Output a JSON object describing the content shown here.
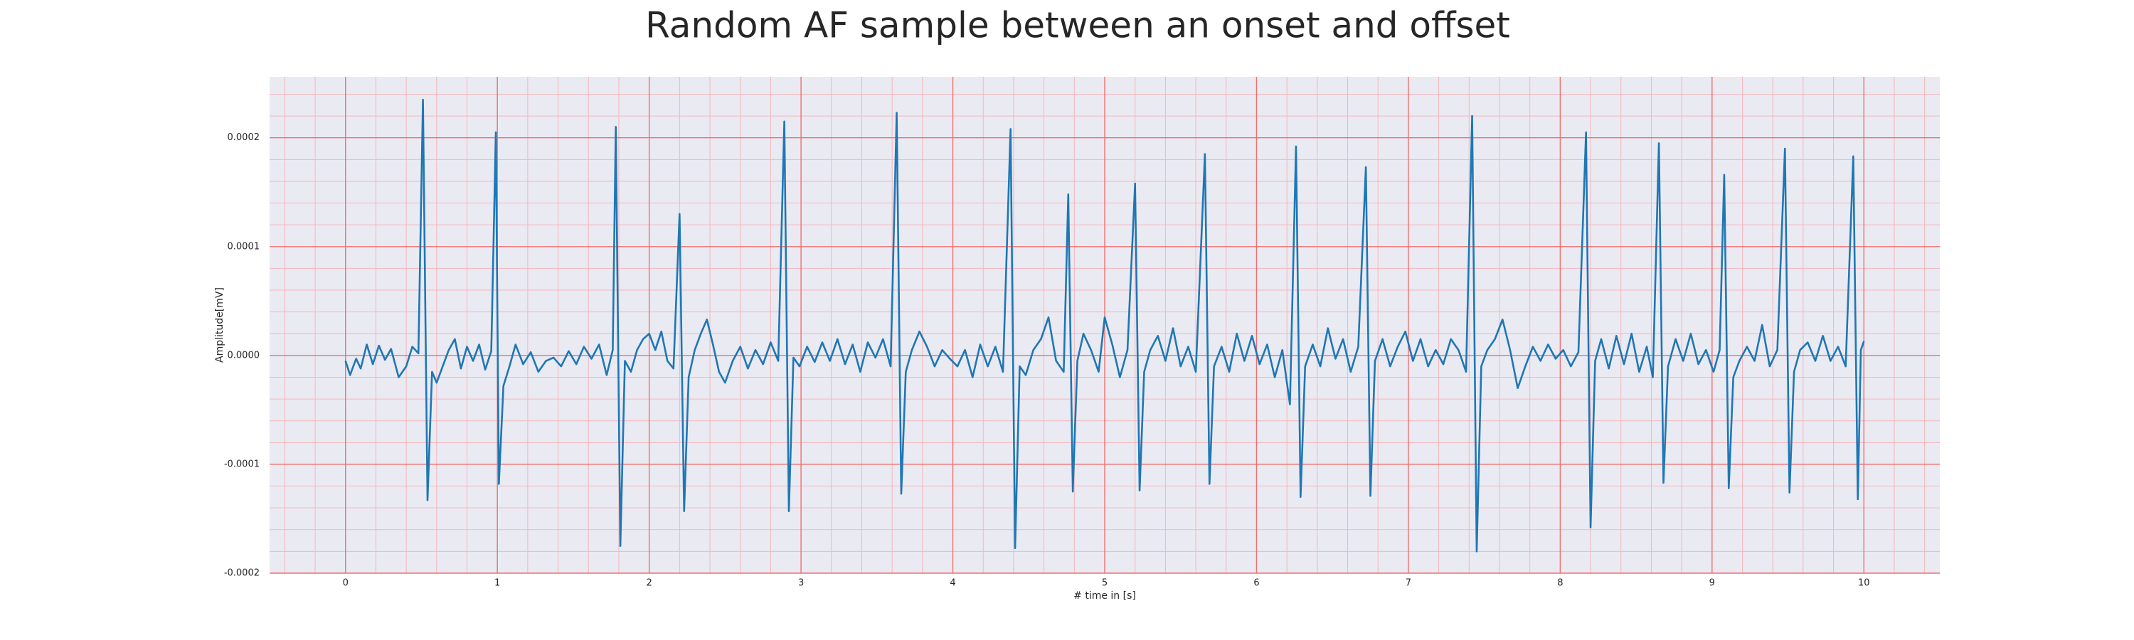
{
  "chart_data": {
    "type": "line",
    "title": "Random AF sample between an onset and offset",
    "x_label": "# time in [s]",
    "y_label": "Amplitude[mV]",
    "xlim": [
      -0.5,
      10.5
    ],
    "ylim": [
      -0.0002,
      0.000256
    ],
    "xticks": [
      0,
      1,
      2,
      3,
      4,
      5,
      6,
      7,
      8,
      9,
      10
    ],
    "yticks": [
      -0.0002,
      -0.0001,
      {
        "value": 0,
        "label": "0.0000"
      },
      0.0001,
      0.0002
    ],
    "xminorticks": [
      -0.4,
      -0.2,
      0.2,
      0.4,
      0.6,
      0.8,
      1.2,
      1.4,
      1.6,
      1.8,
      2.2,
      2.4,
      2.6,
      2.8,
      3.2,
      3.4,
      3.6,
      3.8,
      4.2,
      4.4,
      4.6,
      4.8,
      5.2,
      5.4,
      5.6,
      5.8,
      6.2,
      6.4,
      6.6,
      6.8,
      7.2,
      7.4,
      7.6,
      7.8,
      8.2,
      8.4,
      8.6,
      8.8,
      9.2,
      9.4,
      9.6,
      9.8,
      10.2,
      10.4
    ],
    "yminorticks": [
      -0.00018,
      -0.00016,
      -0.00014,
      -0.00012,
      -8e-05,
      -6e-05,
      -4e-05,
      -2e-05,
      2e-05,
      4e-05,
      6e-05,
      8e-05,
      0.00012,
      0.00014,
      0.00016,
      0.00018,
      0.00022,
      0.00024
    ],
    "grid": true,
    "x": [
      0,
      0.03,
      0.07,
      0.1,
      0.14,
      0.18,
      0.22,
      0.26,
      0.3,
      0.35,
      0.4,
      0.44,
      0.48,
      0.51,
      0.54,
      0.57,
      0.6,
      0.64,
      0.68,
      0.72,
      0.76,
      0.8,
      0.84,
      0.88,
      0.92,
      0.96,
      0.99,
      1.01,
      1.04,
      1.08,
      1.12,
      1.17,
      1.22,
      1.27,
      1.32,
      1.37,
      1.42,
      1.47,
      1.52,
      1.57,
      1.62,
      1.67,
      1.72,
      1.76,
      1.78,
      1.81,
      1.84,
      1.88,
      1.92,
      1.96,
      2.0,
      2.04,
      2.08,
      2.12,
      2.16,
      2.2,
      2.23,
      2.26,
      2.3,
      2.34,
      2.38,
      2.42,
      2.46,
      2.5,
      2.55,
      2.6,
      2.65,
      2.7,
      2.75,
      2.8,
      2.85,
      2.89,
      2.92,
      2.95,
      2.99,
      3.04,
      3.09,
      3.14,
      3.19,
      3.24,
      3.29,
      3.34,
      3.39,
      3.44,
      3.49,
      3.54,
      3.59,
      3.63,
      3.66,
      3.69,
      3.73,
      3.78,
      3.83,
      3.88,
      3.93,
      3.98,
      4.03,
      4.08,
      4.13,
      4.18,
      4.23,
      4.28,
      4.33,
      4.38,
      4.41,
      4.44,
      4.48,
      4.53,
      4.58,
      4.63,
      4.68,
      4.73,
      4.76,
      4.79,
      4.82,
      4.86,
      4.91,
      4.96,
      5.0,
      5.05,
      5.1,
      5.15,
      5.2,
      5.23,
      5.26,
      5.3,
      5.35,
      5.4,
      5.45,
      5.5,
      5.55,
      5.6,
      5.66,
      5.69,
      5.72,
      5.77,
      5.82,
      5.87,
      5.92,
      5.97,
      6.02,
      6.07,
      6.12,
      6.17,
      6.22,
      6.26,
      6.29,
      6.32,
      6.37,
      6.42,
      6.47,
      6.52,
      6.57,
      6.62,
      6.67,
      6.72,
      6.75,
      6.78,
      6.83,
      6.88,
      6.93,
      6.98,
      7.03,
      7.08,
      7.13,
      7.18,
      7.23,
      7.28,
      7.33,
      7.38,
      7.42,
      7.45,
      7.48,
      7.52,
      7.57,
      7.62,
      7.67,
      7.72,
      7.77,
      7.82,
      7.87,
      7.92,
      7.97,
      8.02,
      8.07,
      8.12,
      8.17,
      8.2,
      8.23,
      8.27,
      8.32,
      8.37,
      8.42,
      8.47,
      8.52,
      8.57,
      8.61,
      8.65,
      8.68,
      8.71,
      8.76,
      8.81,
      8.86,
      8.91,
      8.96,
      9.01,
      9.05,
      9.08,
      9.11,
      9.14,
      9.18,
      9.23,
      9.28,
      9.33,
      9.38,
      9.43,
      9.48,
      9.51,
      9.54,
      9.58,
      9.63,
      9.68,
      9.73,
      9.78,
      9.83,
      9.88,
      9.93,
      9.96,
      9.98,
      10.0
    ],
    "series": [
      {
        "color": "#1f77b4",
        "values": [
          -5e-06,
          -1.8e-05,
          -3e-06,
          -1.2e-05,
          1e-05,
          -8e-06,
          9e-06,
          -4e-06,
          6e-06,
          -2e-05,
          -1e-05,
          8e-06,
          2e-06,
          0.000235,
          -0.000133,
          -1.5e-05,
          -2.5e-05,
          -1e-05,
          5e-06,
          1.5e-05,
          -1.2e-05,
          8e-06,
          -5e-06,
          1e-05,
          -1.3e-05,
          4e-06,
          0.000205,
          -0.000118,
          -2.8e-05,
          -1e-05,
          1e-05,
          -8e-06,
          3e-06,
          -1.5e-05,
          -5e-06,
          -2e-06,
          -1e-05,
          4e-06,
          -8e-06,
          8e-06,
          -3e-06,
          1e-05,
          -1.8e-05,
          5e-06,
          0.00021,
          -0.000175,
          -5e-06,
          -1.5e-05,
          5e-06,
          1.5e-05,
          2e-05,
          5e-06,
          2.2e-05,
          -5e-06,
          -1.2e-05,
          0.00013,
          -0.000143,
          -2e-05,
          5e-06,
          2e-05,
          3.3e-05,
          1e-05,
          -1.5e-05,
          -2.5e-05,
          -5e-06,
          8e-06,
          -1.2e-05,
          5e-06,
          -8e-06,
          1.2e-05,
          -5e-06,
          0.000215,
          -0.000143,
          -2e-06,
          -1e-05,
          8e-06,
          -6e-06,
          1.2e-05,
          -5e-06,
          1.5e-05,
          -8e-06,
          1e-05,
          -1.5e-05,
          1.2e-05,
          -2e-06,
          1.5e-05,
          -1e-05,
          0.000223,
          -0.000127,
          -1.5e-05,
          5e-06,
          2.2e-05,
          8e-06,
          -1e-05,
          5e-06,
          -3e-06,
          -1e-05,
          5e-06,
          -2e-05,
          1e-05,
          -1e-05,
          8e-06,
          -1.5e-05,
          0.000208,
          -0.000177,
          -1e-05,
          -1.8e-05,
          5e-06,
          1.5e-05,
          3.5e-05,
          -5e-06,
          -1.5e-05,
          0.000148,
          -0.000125,
          -5e-06,
          2e-05,
          5e-06,
          -1.5e-05,
          3.5e-05,
          1e-05,
          -2e-05,
          5e-06,
          0.000158,
          -0.000124,
          -1.5e-05,
          5e-06,
          1.8e-05,
          -5e-06,
          2.5e-05,
          -1e-05,
          8e-06,
          -1.5e-05,
          0.000185,
          -0.000118,
          -1e-05,
          8e-06,
          -1.5e-05,
          2e-05,
          -5e-06,
          1.8e-05,
          -8e-06,
          1e-05,
          -2e-05,
          5e-06,
          -4.5e-05,
          0.000192,
          -0.00013,
          -1e-05,
          1e-05,
          -1e-05,
          2.5e-05,
          -3e-06,
          1.5e-05,
          -1.5e-05,
          8e-06,
          0.000173,
          -0.000129,
          -5e-06,
          1.5e-05,
          -1e-05,
          8e-06,
          2.2e-05,
          -5e-06,
          1.5e-05,
          -1e-05,
          5e-06,
          -8e-06,
          1.5e-05,
          5e-06,
          -1.5e-05,
          0.00022,
          -0.00018,
          -1e-05,
          5e-06,
          1.5e-05,
          3.3e-05,
          5e-06,
          -3e-05,
          -1e-05,
          8e-06,
          -5e-06,
          1e-05,
          -3e-06,
          5e-06,
          -1e-05,
          3e-06,
          0.000205,
          -0.000158,
          -5e-06,
          1.5e-05,
          -1.2e-05,
          1.8e-05,
          -8e-06,
          2e-05,
          -1.5e-05,
          8e-06,
          -2e-05,
          0.000195,
          -0.000117,
          -1e-05,
          1.5e-05,
          -5e-06,
          2e-05,
          -8e-06,
          5e-06,
          -1.5e-05,
          5e-06,
          0.000166,
          -0.000122,
          -2e-05,
          -5e-06,
          8e-06,
          -5e-06,
          2.8e-05,
          -1e-05,
          5e-06,
          0.00019,
          -0.000126,
          -1.5e-05,
          5e-06,
          1.2e-05,
          -5e-06,
          1.8e-05,
          -5e-06,
          8e-06,
          -1e-05,
          0.000183,
          -0.000132,
          5e-06,
          1.3e-05
        ]
      }
    ]
  }
}
